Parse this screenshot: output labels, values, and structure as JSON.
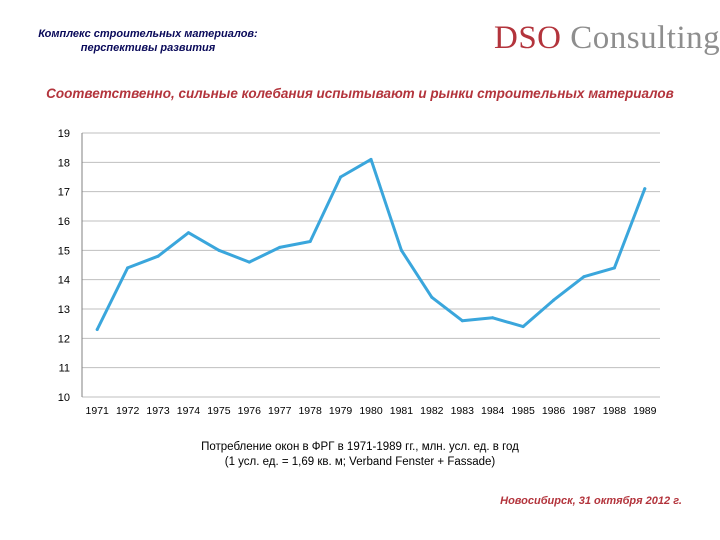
{
  "header": {
    "title_line1": "Комплекс строительных материалов:",
    "title_line2": "перспективы развития",
    "logo_brand": "DSO",
    "logo_rest": "Consulting"
  },
  "slide": {
    "subtitle": "Соответственно, сильные колебания испытывают и рынки строительных материалов",
    "caption_line1": "Потребление окон в ФРГ в 1971-1989 гг., млн. усл. ед. в год",
    "caption_line2": "(1 усл. ед. = 1,69 кв. м; Verband Fenster + Fassade)",
    "footer": "Новосибирск, 31 октября 2012 г."
  },
  "colors": {
    "line": "#3aa6dc",
    "grid": "#bfbfbf",
    "accent": "#b3343c"
  },
  "chart_data": {
    "type": "line",
    "title": "",
    "xlabel": "",
    "ylabel": "",
    "categories": [
      "1971",
      "1972",
      "1973",
      "1974",
      "1975",
      "1976",
      "1977",
      "1978",
      "1979",
      "1980",
      "1981",
      "1982",
      "1983",
      "1984",
      "1985",
      "1986",
      "1987",
      "1988",
      "1989"
    ],
    "series": [
      {
        "name": "Потребление окон",
        "values": [
          12.3,
          14.4,
          14.8,
          15.6,
          15.0,
          14.6,
          15.1,
          15.3,
          17.5,
          18.1,
          15.0,
          13.4,
          12.6,
          12.7,
          12.4,
          13.3,
          14.1,
          14.4,
          17.1
        ]
      }
    ],
    "ylim": [
      10,
      19
    ],
    "yticks": [
      10,
      11,
      12,
      13,
      14,
      15,
      16,
      17,
      18,
      19
    ],
    "grid": true,
    "legend": "none"
  }
}
